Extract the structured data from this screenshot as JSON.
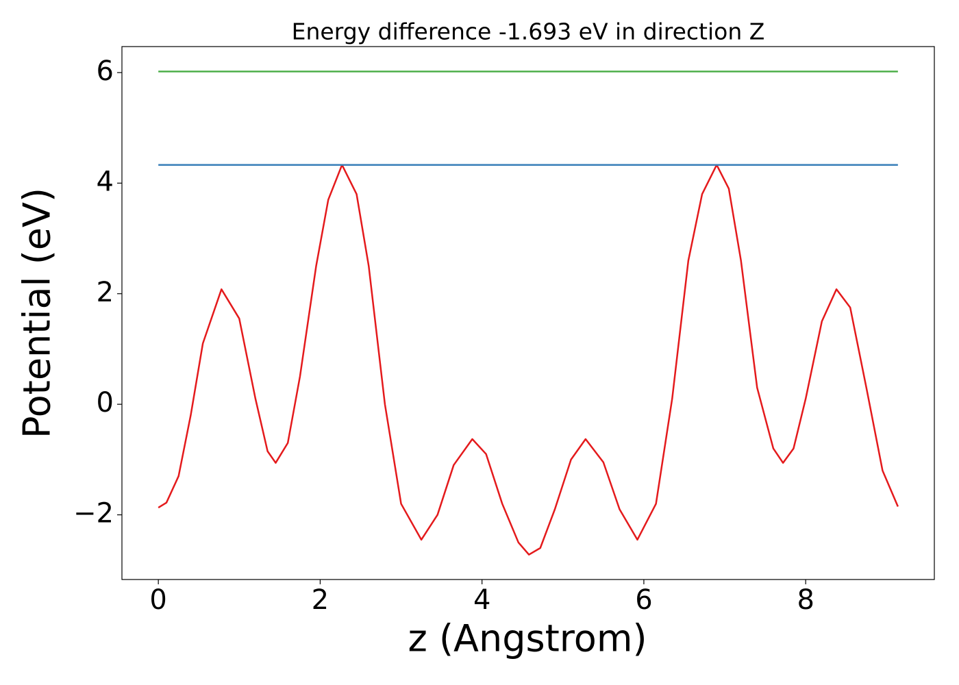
{
  "chart_data": {
    "type": "line",
    "title": "Energy difference -1.693 eV in direction Z",
    "xlabel": "z (Angstrom)",
    "ylabel": "Potential (eV)",
    "xlim": [
      -0.45,
      9.59
    ],
    "ylim": [
      -3.17,
      6.47
    ],
    "xticks": [
      0,
      2,
      4,
      6,
      8
    ],
    "yticks": [
      {
        "value": -2,
        "label": "−2"
      },
      0,
      2,
      4,
      6
    ],
    "series": [
      {
        "color": "#e41a1c",
        "x": [
          0,
          0.1,
          0.25,
          0.4,
          0.55,
          0.78,
          1.0,
          1.2,
          1.35,
          1.45,
          1.6,
          1.75,
          1.95,
          2.1,
          2.27,
          2.45,
          2.6,
          2.8,
          3.0,
          3.25,
          3.45,
          3.65,
          3.88,
          4.05,
          4.25,
          4.45,
          4.58,
          4.72,
          4.9,
          5.1,
          5.28,
          5.5,
          5.7,
          5.92,
          6.15,
          6.35,
          6.55,
          6.72,
          6.9,
          7.05,
          7.2,
          7.4,
          7.6,
          7.72,
          7.85,
          8.0,
          8.2,
          8.38,
          8.55,
          8.75,
          8.95,
          9.14
        ],
        "values": [
          -1.87,
          -1.78,
          -1.3,
          -0.2,
          1.1,
          2.08,
          1.55,
          0.1,
          -0.85,
          -1.06,
          -0.7,
          0.5,
          2.5,
          3.7,
          4.33,
          3.8,
          2.5,
          0.0,
          -1.8,
          -2.45,
          -2.0,
          -1.1,
          -0.63,
          -0.9,
          -1.8,
          -2.5,
          -2.72,
          -2.6,
          -1.9,
          -1.0,
          -0.63,
          -1.05,
          -1.9,
          -2.45,
          -1.8,
          0.1,
          2.6,
          3.8,
          4.33,
          3.9,
          2.6,
          0.3,
          -0.8,
          -1.06,
          -0.8,
          0.1,
          1.5,
          2.08,
          1.75,
          0.3,
          -1.2,
          -1.85
        ]
      },
      {
        "color": "#377eb8",
        "x": [
          0,
          9.14
        ],
        "values": [
          4.33,
          4.33
        ]
      },
      {
        "color": "#4daf4a",
        "x": [
          0,
          9.14
        ],
        "values": [
          6.02,
          6.02
        ]
      }
    ]
  }
}
